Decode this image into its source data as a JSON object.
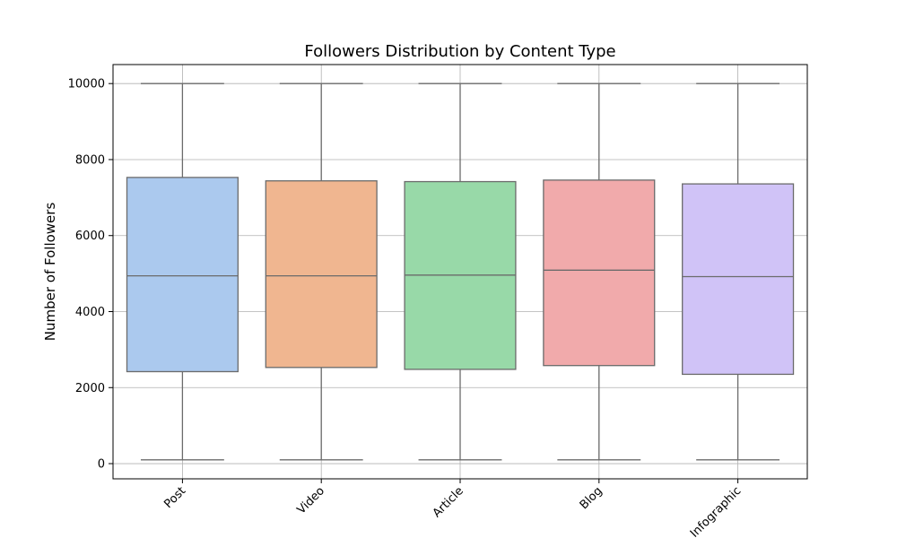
{
  "chart_data": {
    "type": "box",
    "title": "Followers Distribution by Content Type",
    "xlabel": "",
    "ylabel": "Number of Followers",
    "ylim": [
      -400,
      10500
    ],
    "yticks": [
      0,
      2000,
      4000,
      6000,
      8000,
      10000
    ],
    "grid": true,
    "categories": [
      "Post",
      "Video",
      "Article",
      "Blog",
      "Infographic"
    ],
    "boxes": [
      {
        "category": "Post",
        "min": 100,
        "q1": 2420,
        "median": 4940,
        "q3": 7530,
        "max": 10000,
        "color": "#abc9ee"
      },
      {
        "category": "Video",
        "min": 100,
        "q1": 2530,
        "median": 4940,
        "q3": 7440,
        "max": 10000,
        "color": "#f0b690"
      },
      {
        "category": "Article",
        "min": 100,
        "q1": 2480,
        "median": 4960,
        "q3": 7420,
        "max": 10000,
        "color": "#98d9a8"
      },
      {
        "category": "Blog",
        "min": 100,
        "q1": 2580,
        "median": 5090,
        "q3": 7460,
        "max": 10000,
        "color": "#f1aaab"
      },
      {
        "category": "Infographic",
        "min": 100,
        "q1": 2350,
        "median": 4920,
        "q3": 7360,
        "max": 10000,
        "color": "#d0c3f7"
      }
    ]
  }
}
